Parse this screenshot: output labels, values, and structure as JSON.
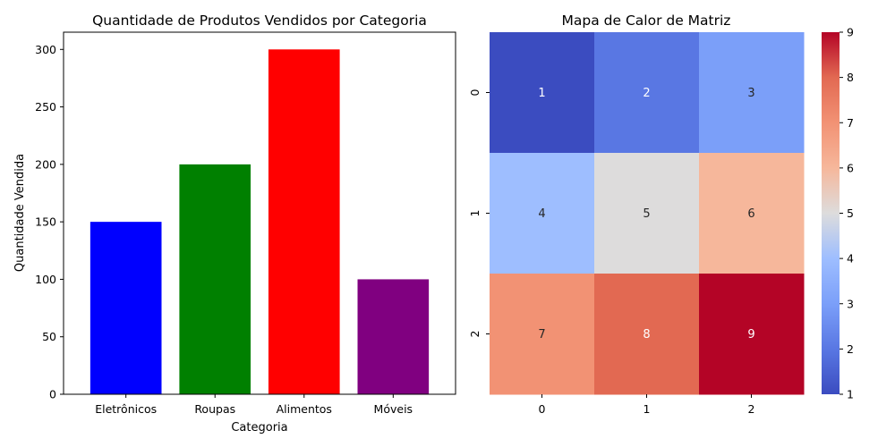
{
  "chart_data": [
    {
      "type": "bar",
      "title": "Quantidade de Produtos Vendidos por Categoria",
      "xlabel": "Categoria",
      "ylabel": "Quantidade Vendida",
      "categories": [
        "Eletrônicos",
        "Roupas",
        "Alimentos",
        "Móveis"
      ],
      "values": [
        150,
        200,
        300,
        100
      ],
      "colors": [
        "#0000ff",
        "#008000",
        "#ff0000",
        "#800080"
      ],
      "ylim": [
        0,
        315
      ],
      "yticks": [
        0,
        50,
        100,
        150,
        200,
        250,
        300
      ],
      "grid": false,
      "legend": "none"
    },
    {
      "type": "heatmap",
      "title": "Mapa de Calor de Matriz",
      "colormap": "coolwarm",
      "x_ticks": [
        "0",
        "1",
        "2"
      ],
      "y_ticks": [
        "0",
        "1",
        "2"
      ],
      "matrix": [
        [
          1,
          2,
          3
        ],
        [
          4,
          5,
          6
        ],
        [
          7,
          8,
          9
        ]
      ],
      "vmin": 1,
      "vmax": 9,
      "colorbar_ticks": [
        1,
        2,
        3,
        4,
        5,
        6,
        7,
        8,
        9
      ],
      "annotated": true
    }
  ]
}
